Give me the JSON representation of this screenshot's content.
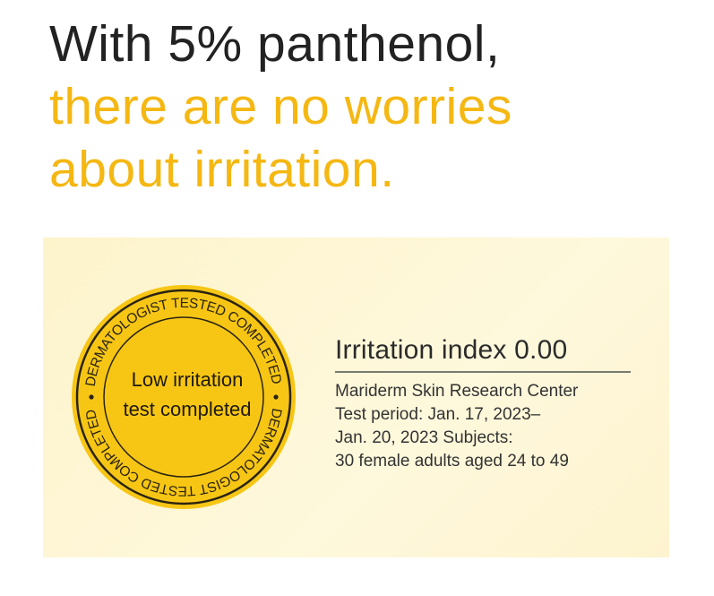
{
  "headline": {
    "line1": "With 5% panthenol,",
    "line2": "there are no worries",
    "line3": "about irritation."
  },
  "seal": {
    "ring_text": "DERMATOLOGIST TESTED COMPLETED",
    "center_line1": "Low irritation",
    "center_line2": "test completed",
    "color": "#f7c615"
  },
  "info": {
    "title": "Irritation index 0.00",
    "lines": [
      "Mariderm Skin Research Center",
      "Test period: Jan. 17, 2023–",
      "Jan. 20, 2023 Subjects:",
      "30 female adults aged 24 to 49"
    ]
  },
  "colors": {
    "accent": "#f5b712",
    "text": "#222222",
    "panel": "#fdf5d2"
  }
}
